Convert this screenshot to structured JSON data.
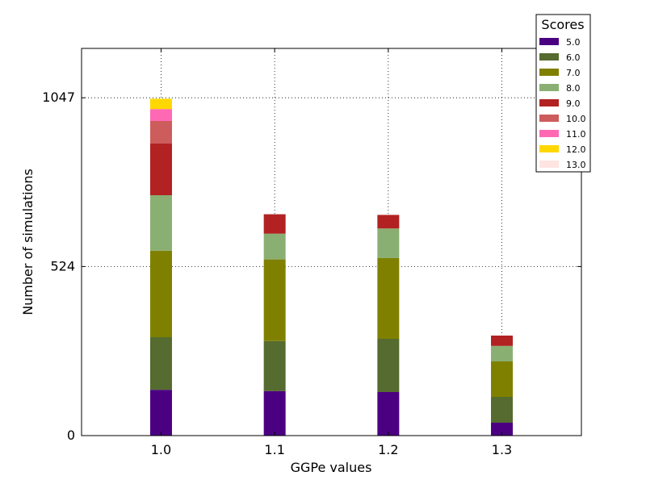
{
  "chart_data": {
    "type": "bar",
    "stacked": true,
    "title": "",
    "xlabel": "GGPe values",
    "ylabel": "Number of simulations",
    "categories": [
      "1.0",
      "1.1",
      "1.2",
      "1.3"
    ],
    "x_ticks": [
      "1.0",
      "1.1",
      "1.2",
      "1.3"
    ],
    "y_ticks": [
      "0",
      "524",
      "1047"
    ],
    "y_tick_values": [
      0,
      524,
      1047
    ],
    "ylim": [
      0,
      1200
    ],
    "xlim": [
      0.93,
      1.37
    ],
    "grid": true,
    "legend_title": "Scores",
    "legend_position": "top-right",
    "series": [
      {
        "name": "5.0",
        "color": "#4b0082",
        "values": [
          142,
          138,
          135,
          40
        ]
      },
      {
        "name": "6.0",
        "color": "#556b2f",
        "values": [
          163,
          155,
          165,
          80
        ]
      },
      {
        "name": "7.0",
        "color": "#808000",
        "values": [
          268,
          253,
          250,
          110
        ]
      },
      {
        "name": "8.0",
        "color": "#8aaf73",
        "values": [
          172,
          80,
          92,
          48
        ]
      },
      {
        "name": "9.0",
        "color": "#b22222",
        "values": [
          160,
          60,
          42,
          32
        ]
      },
      {
        "name": "10.0",
        "color": "#cd5c5c",
        "values": [
          70,
          0,
          0,
          0
        ]
      },
      {
        "name": "11.0",
        "color": "#ff69b4",
        "values": [
          37,
          0,
          0,
          0
        ]
      },
      {
        "name": "12.0",
        "color": "#ffd700",
        "values": [
          32,
          0,
          0,
          0
        ]
      },
      {
        "name": "13.0",
        "color": "#ffe4e1",
        "values": [
          0,
          0,
          0,
          0
        ]
      }
    ]
  }
}
